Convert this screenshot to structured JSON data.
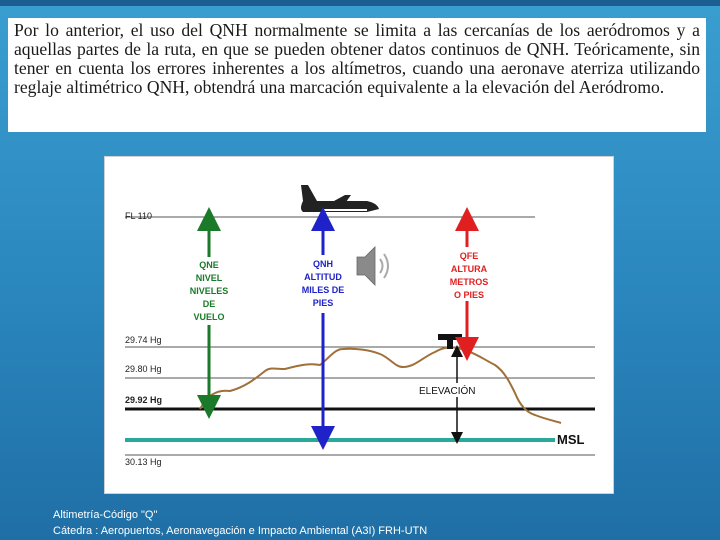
{
  "slide": {
    "paragraph": "Por lo anterior, el uso del QNH normalmente se limita a las cercanías de los aeródromos y a aquellas partes de la ruta, en que se pueden obtener datos continuos de QNH. Teóricamente, sin tener en cuenta los errores inherentes a los altímetros, cuando una aeronave aterriza utilizando reglaje altimétrico QNH, obtendrá una marcación equivalente a la elevación del Aeródromo."
  },
  "diagram": {
    "levels": {
      "fl": "FL 110",
      "p1": "29.74 Hg",
      "p2": "29.80 Hg",
      "p3": "29.92 Hg",
      "p4": "30.13 Hg"
    },
    "qne": [
      "QNE",
      "NIVEL",
      "NIVELES",
      "DE",
      "VUELO"
    ],
    "qnh": [
      "QNH",
      "ALTITUD",
      "MILES DE",
      "PIES"
    ],
    "qfe": [
      "QFE",
      "ALTURA",
      "METROS",
      "O PIES"
    ],
    "elevation": "ELEVACIÓN",
    "msl": "MSL",
    "colors": {
      "qne": "#1a7a2a",
      "qnh": "#1e22c8",
      "qfe": "#e02020",
      "msl": "#2aa89a",
      "terrain": "#a0703a"
    }
  },
  "footer": {
    "line1": "Altimetría-Código \"Q\"",
    "line2": "Cátedra : Aeropuertos, Aeronavegación e Impacto Ambiental (A3I)  FRH-UTN"
  }
}
